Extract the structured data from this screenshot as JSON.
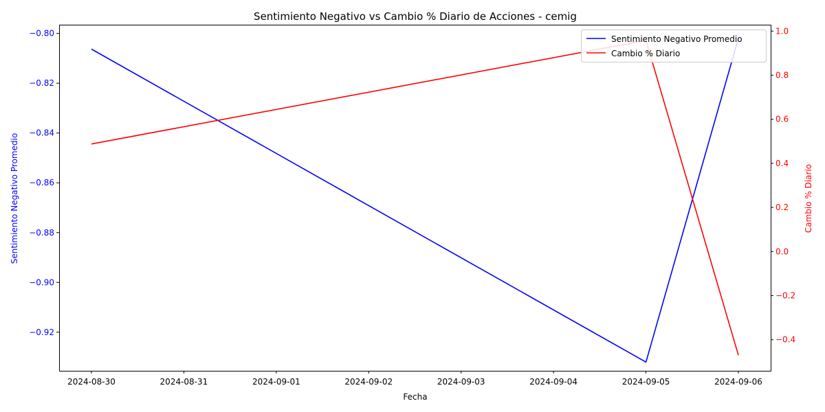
{
  "chart_data": {
    "type": "line",
    "title": "Sentimiento Negativo vs Cambio % Diario de Acciones - cemig",
    "xlabel": "Fecha",
    "x_ticks": [
      "2024-08-30",
      "2024-08-31",
      "2024-09-01",
      "2024-09-02",
      "2024-09-03",
      "2024-09-04",
      "2024-09-05",
      "2024-09-06"
    ],
    "x": [
      "2024-08-30",
      "2024-09-05",
      "2024-09-06"
    ],
    "left_axis": {
      "label": "Sentimiento Negativo Promedio",
      "color": "#0000ff",
      "ylim": [
        -0.9355,
        -0.7965
      ],
      "ticks": [
        -0.92,
        -0.9,
        -0.88,
        -0.86,
        -0.84,
        -0.82,
        -0.8
      ],
      "tick_labels": [
        "−0.92",
        "−0.90",
        "−0.88",
        "−0.86",
        "−0.84",
        "−0.82",
        "−0.80"
      ]
    },
    "right_axis": {
      "label": "Cambio % Diario",
      "color": "#ff0000",
      "ylim": [
        -0.541,
        1.029
      ],
      "ticks": [
        -0.4,
        -0.2,
        0.0,
        0.2,
        0.4,
        0.6,
        0.8,
        1.0
      ],
      "tick_labels": [
        "−0.4",
        "−0.2",
        "0.0",
        "0.2",
        "0.4",
        "0.6",
        "0.8",
        "1.0"
      ]
    },
    "series": [
      {
        "name": "Sentimiento Negativo Promedio",
        "axis": "left",
        "color": "#0000ff",
        "values": [
          -0.8063,
          -0.932,
          -0.802
        ]
      },
      {
        "name": "Cambio % Diario",
        "axis": "right",
        "color": "#ff0000",
        "values": [
          0.488,
          0.958,
          -0.47
        ]
      }
    ],
    "legend": {
      "placement": "top-right"
    },
    "grid": false
  }
}
